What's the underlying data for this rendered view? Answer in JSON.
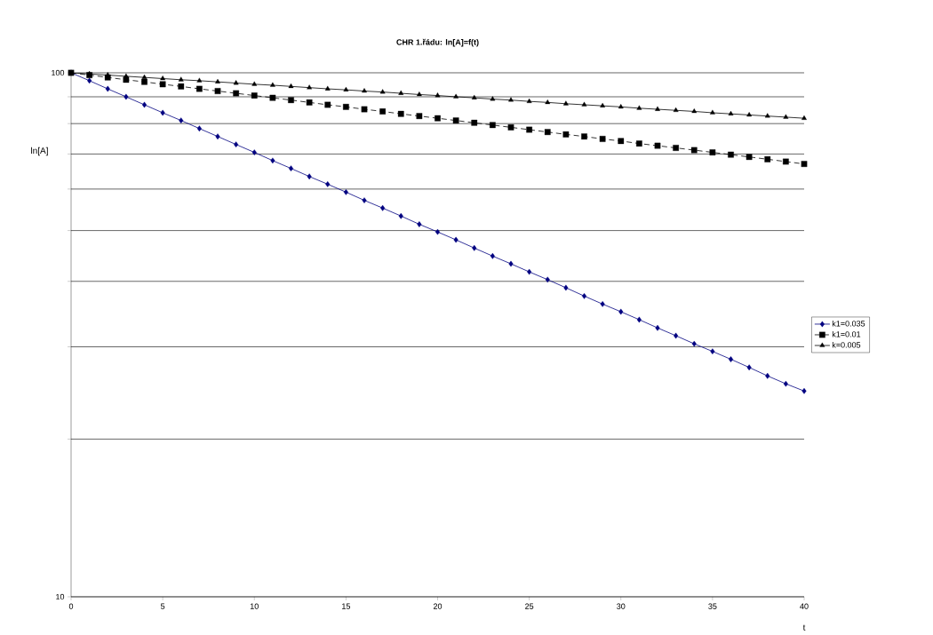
{
  "chart_data": {
    "type": "line",
    "title": "CHR 1.řádu: ln[A]=f(t)",
    "xlabel": "t",
    "ylabel": "ln[A]",
    "log": "y",
    "grid": "y",
    "legend": "right",
    "x": [
      0,
      1,
      2,
      3,
      4,
      5,
      6,
      7,
      8,
      9,
      10,
      11,
      12,
      13,
      14,
      15,
      16,
      17,
      18,
      19,
      20,
      21,
      22,
      23,
      24,
      25,
      26,
      27,
      28,
      29,
      30,
      31,
      32,
      33,
      34,
      35,
      36,
      37,
      38,
      39,
      40
    ],
    "xlim": [
      0,
      40
    ],
    "xticks": [
      0,
      5,
      10,
      15,
      20,
      25,
      30,
      35,
      40
    ],
    "ylim": [
      10,
      100
    ],
    "yticks": [
      10,
      {
        "value": 20,
        "label": null
      },
      {
        "value": 30,
        "label": null
      },
      {
        "value": 40,
        "label": null
      },
      {
        "value": 50,
        "label": null
      },
      {
        "value": 60,
        "label": null
      },
      {
        "value": 70,
        "label": null
      },
      {
        "value": 80,
        "label": null
      },
      {
        "value": 90,
        "label": null
      },
      100
    ],
    "series": [
      {
        "name": "k1=0.035",
        "color": "#000080",
        "marker": "diamond",
        "line_style": "solid",
        "values": [
          100,
          96.6,
          93.2,
          90.0,
          86.9,
          83.9,
          81.1,
          78.3,
          75.6,
          73.0,
          70.5,
          68.0,
          65.7,
          63.4,
          61.3,
          59.2,
          57.1,
          55.2,
          53.3,
          51.4,
          49.7,
          48.0,
          46.3,
          44.7,
          43.2,
          41.7,
          40.3,
          38.9,
          37.5,
          36.2,
          35.0,
          33.8,
          32.6,
          31.5,
          30.4,
          29.4,
          28.4,
          27.4,
          26.4,
          25.5,
          24.7
        ]
      },
      {
        "name": "k1=0.01",
        "color": "#000000",
        "marker": "square",
        "line_style": "dashed",
        "values": [
          100,
          99.0,
          98.0,
          97.0,
          96.1,
          95.1,
          94.2,
          93.2,
          92.3,
          91.4,
          90.5,
          89.6,
          88.7,
          87.8,
          86.9,
          86.1,
          85.2,
          84.4,
          83.5,
          82.7,
          81.9,
          81.1,
          80.3,
          79.5,
          78.7,
          77.9,
          77.1,
          76.3,
          75.6,
          74.8,
          74.1,
          73.3,
          72.6,
          71.9,
          71.2,
          70.5,
          69.8,
          69.1,
          68.4,
          67.7,
          67.0
        ]
      },
      {
        "name": "k=0.005",
        "color": "#000000",
        "marker": "triangle",
        "line_style": "solid",
        "values": [
          100,
          99.5,
          99.0,
          98.5,
          98.0,
          97.5,
          97.0,
          96.6,
          96.1,
          95.6,
          95.1,
          94.7,
          94.2,
          93.7,
          93.2,
          92.8,
          92.3,
          91.9,
          91.4,
          90.9,
          90.5,
          90.0,
          89.6,
          89.1,
          88.7,
          88.2,
          87.8,
          87.3,
          86.9,
          86.5,
          86.1,
          85.6,
          85.2,
          84.8,
          84.4,
          83.9,
          83.5,
          83.1,
          82.7,
          82.3,
          81.9
        ]
      }
    ]
  }
}
